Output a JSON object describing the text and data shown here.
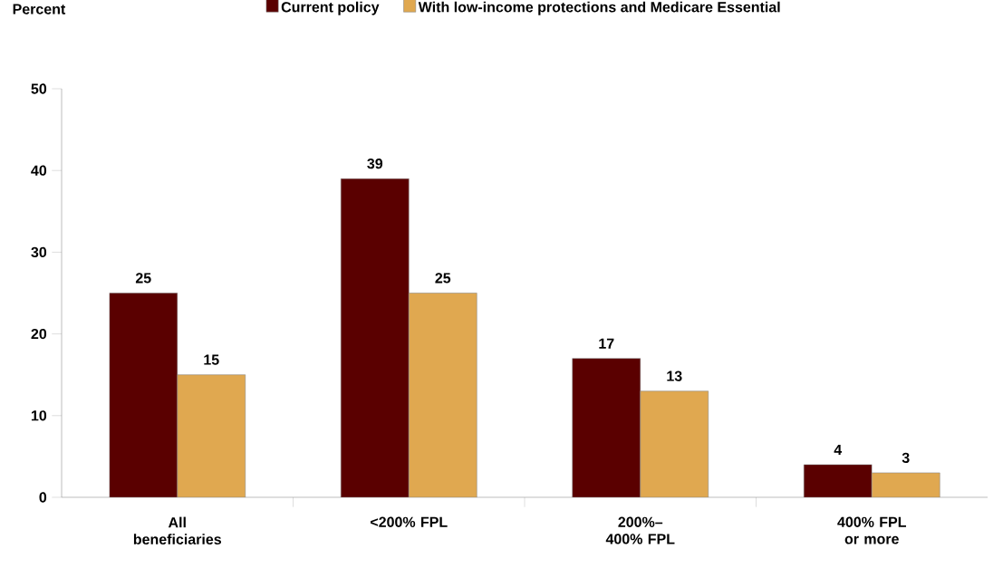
{
  "chart_data": {
    "type": "bar",
    "ylabel": "Percent",
    "categories": [
      "All beneficiaries",
      "<200% FPL",
      "200%–400% FPL",
      "400% FPL or more"
    ],
    "series": [
      {
        "name": "Current policy",
        "color": "#5a0000",
        "values": [
          25,
          39,
          17,
          4
        ]
      },
      {
        "name": "With low-income protections and Medicare Essential",
        "color": "#e0a850",
        "values": [
          15,
          25,
          13,
          3
        ]
      }
    ],
    "ylim": [
      0,
      50
    ],
    "yticks": [
      0,
      10,
      20,
      30,
      40,
      50
    ],
    "grid": false,
    "legend": "top",
    "data_labels": true
  }
}
